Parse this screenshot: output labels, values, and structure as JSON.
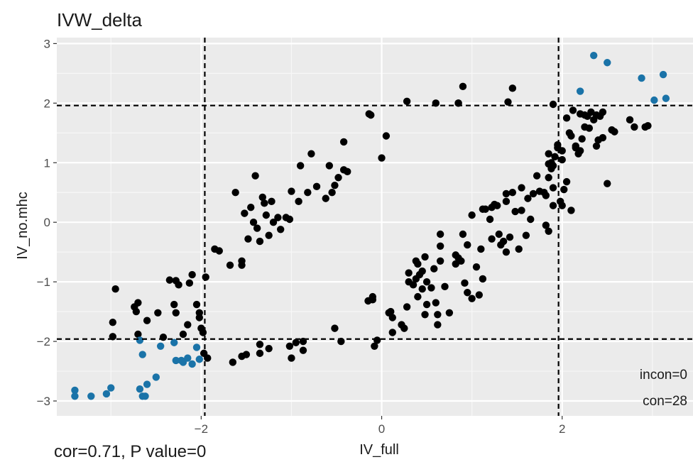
{
  "chart_data": {
    "type": "scatter",
    "title": "IVW_delta",
    "xlabel": "IV_full",
    "ylabel": "IV_no.mhc",
    "xlim": [
      -3.6,
      3.45
    ],
    "ylim": [
      -3.25,
      3.1
    ],
    "x_ticks": [
      -2,
      0,
      2
    ],
    "x_tick_labels": [
      "−2",
      "0",
      "2"
    ],
    "y_ticks": [
      -3,
      -2,
      -1,
      0,
      1,
      2,
      3
    ],
    "y_tick_labels": [
      "−3",
      "−2",
      "−1",
      "0",
      "1",
      "2",
      "3"
    ],
    "grid": true,
    "panel_background": "#ebebeb",
    "reference_lines": {
      "x": [
        -1.96,
        1.96
      ],
      "y": [
        -1.96,
        1.96
      ],
      "style": "dashed"
    },
    "annotations": [
      "incon=0",
      "con=28"
    ],
    "footer": "cor=0.71, P value=0",
    "colors": {
      "con": "#1a73a8",
      "other": "#000000"
    },
    "series": [
      {
        "color": "#000000",
        "points": [
          [
            -2.95,
            -1.12
          ],
          [
            -2.98,
            -1.68
          ],
          [
            -2.98,
            -1.92
          ],
          [
            -2.7,
            -1.35
          ],
          [
            -2.74,
            -1.42
          ],
          [
            -2.72,
            -1.5
          ],
          [
            -2.7,
            -1.88
          ],
          [
            -2.6,
            -1.65
          ],
          [
            -2.48,
            -1.52
          ],
          [
            -2.42,
            -1.93
          ],
          [
            -2.35,
            -0.97
          ],
          [
            -2.28,
            -0.98
          ],
          [
            -2.25,
            -1.05
          ],
          [
            -2.3,
            -1.38
          ],
          [
            -2.28,
            -1.52
          ],
          [
            -2.2,
            -1.88
          ],
          [
            -2.15,
            -1.72
          ],
          [
            -2.13,
            -1.02
          ],
          [
            -2.1,
            -0.88
          ],
          [
            -2.05,
            -1.38
          ],
          [
            -2.02,
            -1.52
          ],
          [
            -2.02,
            -1.6
          ],
          [
            -2.0,
            -1.78
          ],
          [
            -1.98,
            -1.85
          ],
          [
            -1.97,
            -2.2
          ],
          [
            -1.95,
            -0.92
          ],
          [
            -1.93,
            -2.28
          ],
          [
            -1.85,
            -0.45
          ],
          [
            -1.8,
            -0.48
          ],
          [
            -1.68,
            -0.72
          ],
          [
            -1.62,
            0.5
          ],
          [
            -1.55,
            -0.65
          ],
          [
            -1.55,
            -0.72
          ],
          [
            -1.52,
            0.15
          ],
          [
            -1.48,
            -0.28
          ],
          [
            -1.45,
            0.25
          ],
          [
            -1.42,
            0.0
          ],
          [
            -1.4,
            0.78
          ],
          [
            -1.38,
            -0.1
          ],
          [
            -1.35,
            -0.32
          ],
          [
            -1.32,
            0.42
          ],
          [
            -1.3,
            0.32
          ],
          [
            -1.28,
            0.12
          ],
          [
            -1.25,
            -0.22
          ],
          [
            -1.22,
            0.35
          ],
          [
            -1.2,
            0.0
          ],
          [
            -1.15,
            0.08
          ],
          [
            -1.12,
            -0.12
          ],
          [
            -1.06,
            0.08
          ],
          [
            -1.02,
            0.05
          ],
          [
            -1.0,
            0.52
          ],
          [
            -0.92,
            0.35
          ],
          [
            -0.9,
            0.95
          ],
          [
            -0.82,
            0.5
          ],
          [
            -0.78,
            1.15
          ],
          [
            -0.72,
            0.6
          ],
          [
            -0.62,
            0.4
          ],
          [
            -0.58,
            0.95
          ],
          [
            -0.55,
            0.5
          ],
          [
            -0.52,
            0.62
          ],
          [
            -0.48,
            0.75
          ],
          [
            -0.42,
            1.35
          ],
          [
            -0.42,
            0.88
          ],
          [
            -0.38,
            0.85
          ],
          [
            -1.65,
            -2.35
          ],
          [
            -1.55,
            -2.25
          ],
          [
            -1.5,
            -2.22
          ],
          [
            -1.35,
            -2.05
          ],
          [
            -1.35,
            -2.2
          ],
          [
            -1.25,
            -2.12
          ],
          [
            -1.02,
            -2.08
          ],
          [
            -1.0,
            -2.28
          ],
          [
            -0.95,
            -2.02
          ],
          [
            -0.87,
            -2.15
          ],
          [
            -0.87,
            -2.0
          ],
          [
            -0.52,
            -1.78
          ],
          [
            -0.45,
            -2.0
          ],
          [
            -0.15,
            -1.32
          ],
          [
            -0.1,
            -1.25
          ],
          [
            -0.1,
            -1.3
          ],
          [
            -0.08,
            -2.08
          ],
          [
            -0.05,
            -1.98
          ],
          [
            0.0,
            1.08
          ],
          [
            0.05,
            1.45
          ],
          [
            -0.12,
            1.8
          ],
          [
            0.08,
            -1.52
          ],
          [
            0.1,
            -1.5
          ],
          [
            0.12,
            -1.6
          ],
          [
            0.12,
            -1.85
          ],
          [
            0.22,
            -1.72
          ],
          [
            0.25,
            -1.78
          ],
          [
            0.28,
            -1.42
          ],
          [
            0.3,
            -0.85
          ],
          [
            0.3,
            -1.0
          ],
          [
            0.35,
            -1.05
          ],
          [
            0.38,
            -0.95
          ],
          [
            0.38,
            -0.65
          ],
          [
            0.4,
            -0.7
          ],
          [
            0.4,
            -1.25
          ],
          [
            0.42,
            -0.88
          ],
          [
            0.45,
            -0.82
          ],
          [
            0.45,
            -1.12
          ],
          [
            0.48,
            -0.58
          ],
          [
            0.48,
            -1.55
          ],
          [
            0.5,
            -1.38
          ],
          [
            0.5,
            -1.0
          ],
          [
            0.55,
            -1.1
          ],
          [
            0.58,
            -0.78
          ],
          [
            0.6,
            -1.35
          ],
          [
            0.62,
            -1.72
          ],
          [
            0.62,
            -1.55
          ],
          [
            0.65,
            -0.65
          ],
          [
            0.65,
            -0.4
          ],
          [
            0.65,
            -0.2
          ],
          [
            0.7,
            -1.08
          ],
          [
            0.75,
            -1.52
          ],
          [
            0.82,
            -0.55
          ],
          [
            0.82,
            -0.7
          ],
          [
            0.85,
            -0.6
          ],
          [
            0.88,
            -0.65
          ],
          [
            0.9,
            -0.2
          ],
          [
            0.92,
            -1.02
          ],
          [
            0.95,
            -0.38
          ],
          [
            0.95,
            -1.18
          ],
          [
            1.0,
            -1.28
          ],
          [
            1.0,
            0.12
          ],
          [
            1.05,
            -0.75
          ],
          [
            1.08,
            -1.22
          ],
          [
            1.1,
            -0.45
          ],
          [
            1.12,
            -0.95
          ],
          [
            1.12,
            0.22
          ],
          [
            1.15,
            0.22
          ],
          [
            1.2,
            0.05
          ],
          [
            1.22,
            -0.28
          ],
          [
            1.22,
            0.25
          ],
          [
            1.25,
            0.3
          ],
          [
            1.28,
            0.28
          ],
          [
            1.3,
            -0.2
          ],
          [
            1.32,
            -0.38
          ],
          [
            1.35,
            -0.32
          ],
          [
            1.38,
            -0.5
          ],
          [
            1.38,
            0.35
          ],
          [
            1.38,
            0.48
          ],
          [
            1.42,
            -0.25
          ],
          [
            1.45,
            0.5
          ],
          [
            1.48,
            0.18
          ],
          [
            1.52,
            -0.45
          ],
          [
            1.55,
            0.58
          ],
          [
            1.55,
            0.2
          ],
          [
            1.6,
            -0.22
          ],
          [
            1.62,
            0.4
          ],
          [
            1.65,
            0.05
          ],
          [
            1.68,
            0.48
          ],
          [
            1.72,
            0.78
          ],
          [
            1.75,
            0.52
          ],
          [
            1.8,
            0.5
          ],
          [
            1.82,
            -0.05
          ],
          [
            1.82,
            0.45
          ],
          [
            1.85,
            0.75
          ],
          [
            1.85,
            1.15
          ],
          [
            1.88,
            0.9
          ],
          [
            1.88,
            1.0
          ],
          [
            1.9,
            0.58
          ],
          [
            1.9,
            0.28
          ],
          [
            1.9,
            0.95
          ],
          [
            1.92,
            1.1
          ],
          [
            1.95,
            1.25
          ],
          [
            1.95,
            1.3
          ],
          [
            1.98,
            0.35
          ],
          [
            2.0,
            0.28
          ],
          [
            2.0,
            1.2
          ],
          [
            2.02,
            0.55
          ],
          [
            2.05,
            0.68
          ],
          [
            2.08,
            1.5
          ],
          [
            2.1,
            1.45
          ],
          [
            2.1,
            0.2
          ],
          [
            2.12,
            1.88
          ],
          [
            2.15,
            1.25
          ],
          [
            2.15,
            1.28
          ],
          [
            2.18,
            1.15
          ],
          [
            2.2,
            1.2
          ],
          [
            2.22,
            1.4
          ],
          [
            2.25,
            1.8
          ],
          [
            2.28,
            1.78
          ],
          [
            2.3,
            1.58
          ],
          [
            2.32,
            1.85
          ],
          [
            2.35,
            1.72
          ],
          [
            2.38,
            1.28
          ],
          [
            2.38,
            1.8
          ],
          [
            2.4,
            1.38
          ],
          [
            2.45,
            1.42
          ],
          [
            2.5,
            0.65
          ],
          [
            2.55,
            1.55
          ],
          [
            2.58,
            1.52
          ],
          [
            2.75,
            1.72
          ],
          [
            2.8,
            1.6
          ],
          [
            2.92,
            1.6
          ],
          [
            2.95,
            1.62
          ],
          [
            2.42,
            1.78
          ],
          [
            2.45,
            1.85
          ],
          [
            2.05,
            1.75
          ],
          [
            1.85,
            -0.15
          ],
          [
            1.85,
            0.98
          ],
          [
            2.0,
            1.05
          ],
          [
            2.2,
            1.82
          ],
          [
            2.25,
            1.6
          ],
          [
            0.9,
            2.28
          ],
          [
            0.85,
            2.0
          ],
          [
            0.85,
            2.0
          ],
          [
            1.4,
            2.02
          ],
          [
            1.45,
            2.25
          ],
          [
            1.9,
            1.98
          ],
          [
            0.28,
            2.03
          ],
          [
            0.6,
            2.0
          ],
          [
            -0.14,
            1.82
          ]
        ]
      },
      {
        "color": "#1a73a8",
        "points": [
          [
            -3.4,
            -2.82
          ],
          [
            -3.4,
            -2.92
          ],
          [
            -3.22,
            -2.92
          ],
          [
            -3.05,
            -2.88
          ],
          [
            -3.0,
            -2.78
          ],
          [
            -2.68,
            -2.8
          ],
          [
            -2.65,
            -2.92
          ],
          [
            -2.62,
            -2.92
          ],
          [
            -2.6,
            -2.72
          ],
          [
            -2.5,
            -2.6
          ],
          [
            -2.68,
            -1.98
          ],
          [
            -2.65,
            -2.22
          ],
          [
            -2.45,
            -2.08
          ],
          [
            -2.3,
            -2.02
          ],
          [
            -2.28,
            -2.32
          ],
          [
            -2.22,
            -2.32
          ],
          [
            -2.2,
            -2.35
          ],
          [
            -2.15,
            -2.28
          ],
          [
            -2.1,
            -2.38
          ],
          [
            -2.05,
            -2.1
          ],
          [
            -2.02,
            -2.3
          ],
          [
            2.2,
            2.2
          ],
          [
            2.35,
            2.8
          ],
          [
            2.5,
            2.68
          ],
          [
            2.88,
            2.42
          ],
          [
            3.02,
            2.05
          ],
          [
            3.12,
            2.48
          ],
          [
            3.15,
            2.08
          ]
        ]
      }
    ]
  }
}
